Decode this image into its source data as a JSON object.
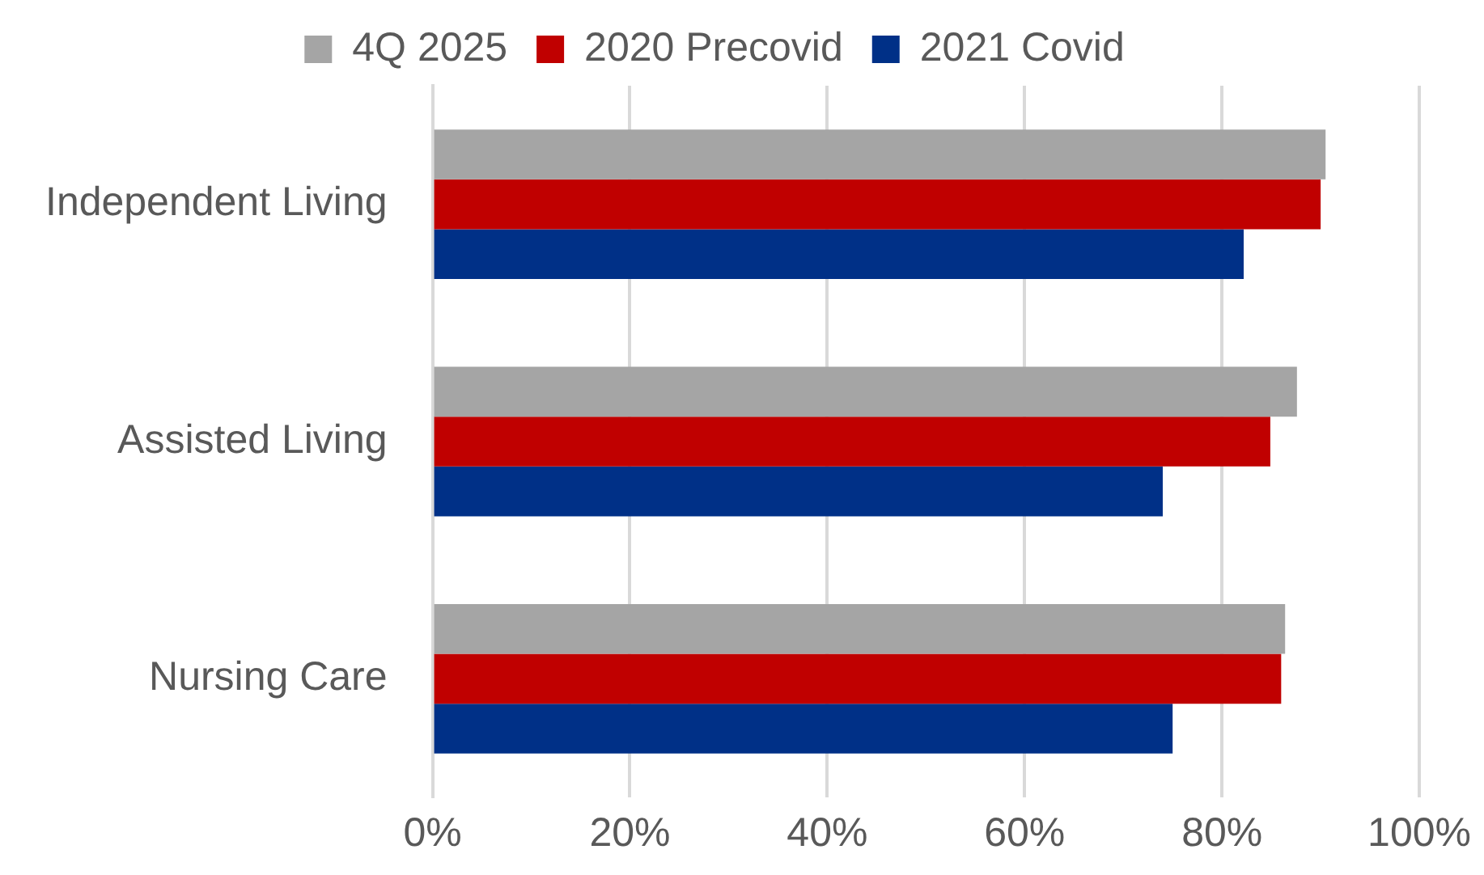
{
  "chart_data": {
    "type": "bar",
    "orientation": "horizontal",
    "categories": [
      "Independent Living",
      "Assisted Living",
      "Nursing Care"
    ],
    "series": [
      {
        "name": "4Q 2025",
        "color": "#a5a5a5",
        "values": [
          90.5,
          87.6,
          86.4
        ]
      },
      {
        "name": "2020 Precovid",
        "color": "#c00000",
        "values": [
          90.0,
          84.9,
          86.0
        ]
      },
      {
        "name": "2021 Covid",
        "color": "#003087",
        "values": [
          82.2,
          74.0,
          75.0
        ]
      }
    ],
    "xlim": [
      0,
      100
    ],
    "xticks": [
      {
        "value": 0,
        "label": "0%"
      },
      {
        "value": 20,
        "label": "20%"
      },
      {
        "value": 40,
        "label": "40%"
      },
      {
        "value": 60,
        "label": "60%"
      },
      {
        "value": 80,
        "label": "80%"
      },
      {
        "value": 100,
        "label": "100%"
      }
    ],
    "grid": "x",
    "legend": "top"
  }
}
